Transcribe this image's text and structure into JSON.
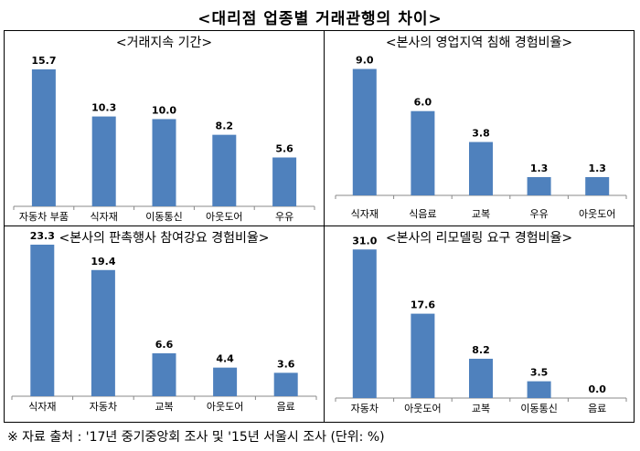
{
  "title": "<대리점 업종별 거래관행의 차이>",
  "footnote": "※ 자료 출처 : '17년 중기중앙회 조사 및 '15년 서울시 조사 (단위: %)",
  "colors": {
    "bar": "#4F81BD",
    "axis": "#888888"
  },
  "chart_data": [
    {
      "type": "bar",
      "title": "<거래지속 기간>",
      "categories": [
        "자동차 부품",
        "식자재",
        "이동통신",
        "아웃도어",
        "우유"
      ],
      "values": [
        15.7,
        10.3,
        10.0,
        8.2,
        5.6
      ],
      "value_labels": [
        "15.7",
        "10.3",
        "10.0",
        "8.2",
        "5.6"
      ],
      "ylim": [
        0,
        18
      ]
    },
    {
      "type": "bar",
      "title": "<본사의 영업지역 침해 경험비율>",
      "categories": [
        "식자재",
        "식음료",
        "교복",
        "우유",
        "아웃도어"
      ],
      "values": [
        9.0,
        6.0,
        3.8,
        1.3,
        1.3
      ],
      "value_labels": [
        "9.0",
        "6.0",
        "3.8",
        "1.3",
        "1.3"
      ],
      "ylim": [
        0,
        10.4
      ]
    },
    {
      "type": "bar",
      "title": "<본사의 판촉행사 참여강요 경험비율>",
      "categories": [
        "식자재",
        "자동차",
        "교복",
        "아웃도어",
        "음료"
      ],
      "values": [
        23.3,
        19.4,
        6.6,
        4.4,
        3.6
      ],
      "value_labels": [
        "23.3",
        "19.4",
        "6.6",
        "4.4",
        "3.6"
      ],
      "ylim": [
        0,
        23.3
      ]
    },
    {
      "type": "bar",
      "title": "<본사의 리모델링 요구 경험비율>",
      "categories": [
        "자동차",
        "아웃도어",
        "교복",
        "이동통신",
        "음료"
      ],
      "values": [
        31.0,
        17.6,
        8.2,
        3.5,
        0.0
      ],
      "value_labels": [
        "31.0",
        "17.6",
        "8.2",
        "3.5",
        "0.0"
      ],
      "ylim": [
        0,
        32
      ]
    }
  ]
}
